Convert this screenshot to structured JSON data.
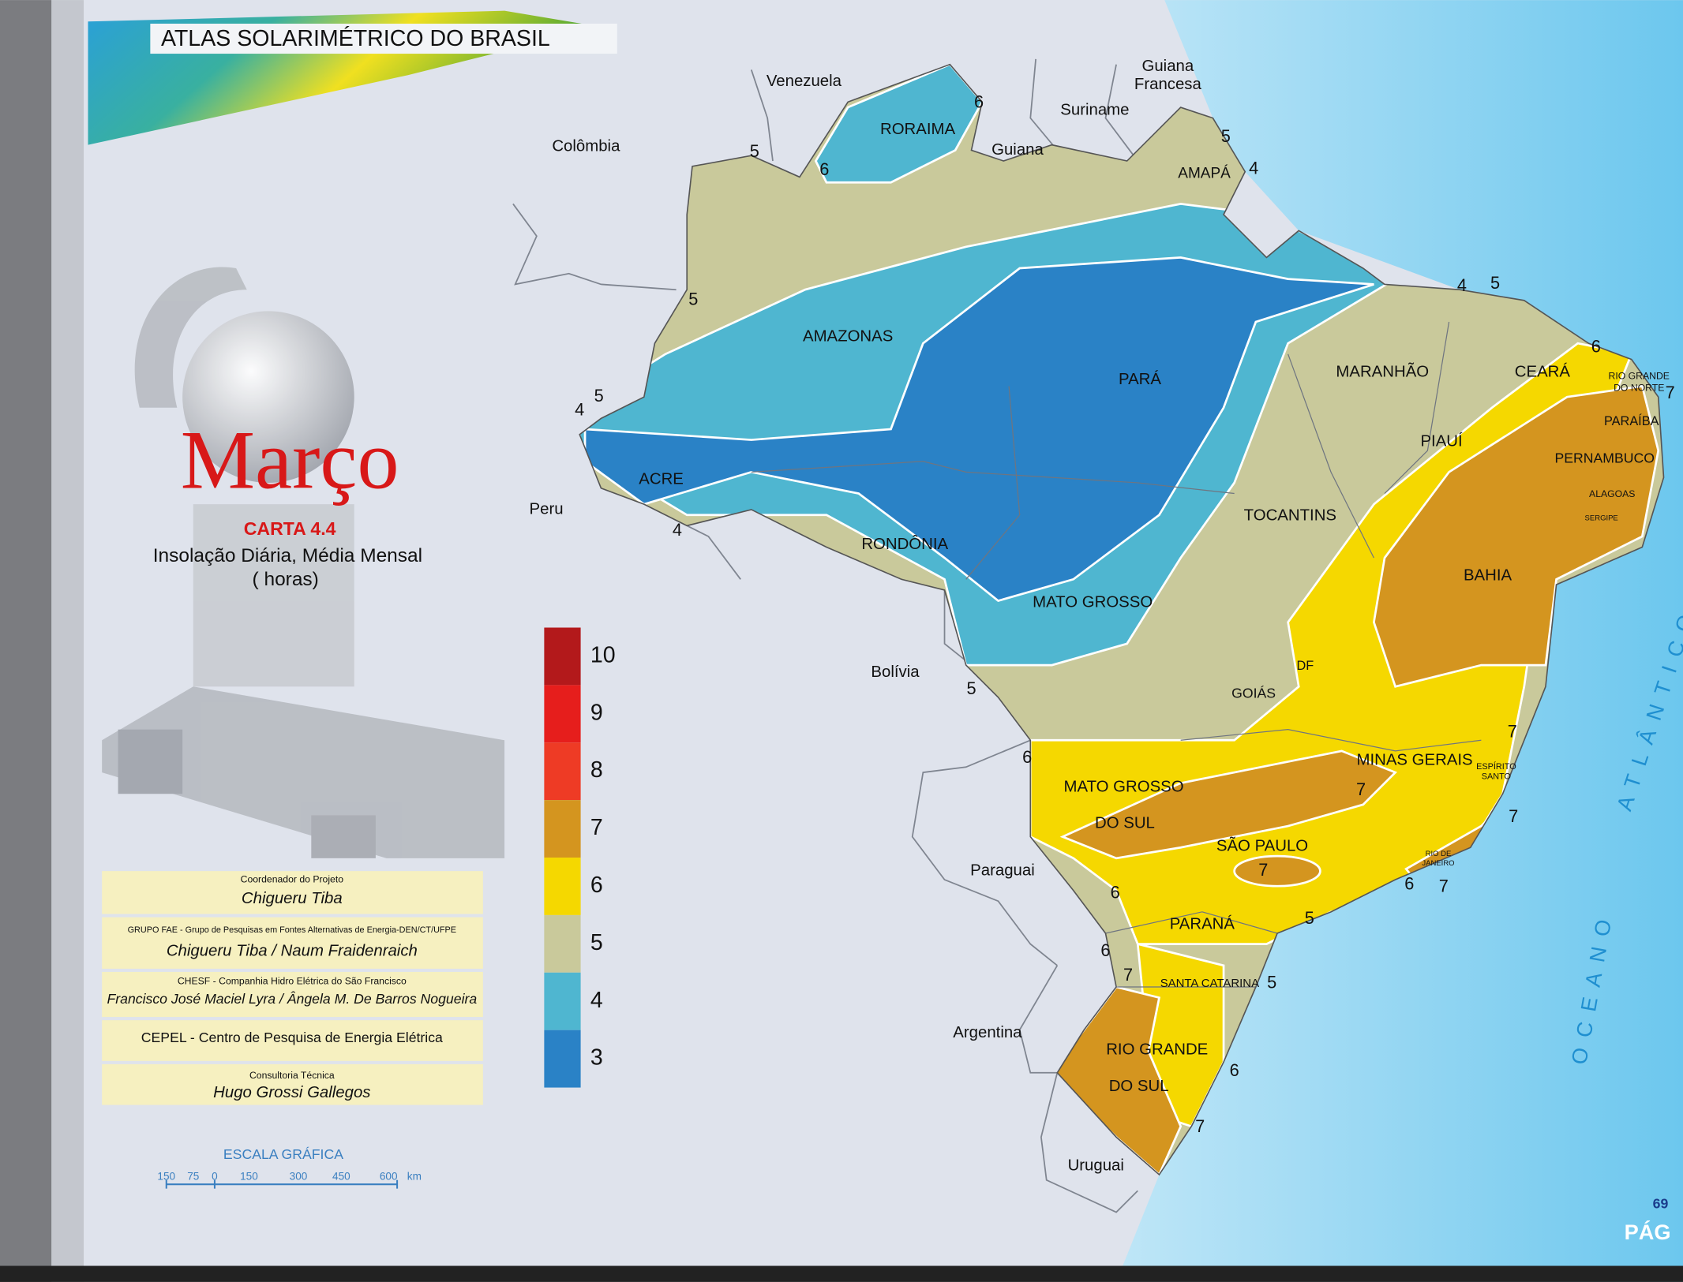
{
  "header": {
    "title": "ATLAS  SOLARIMÉTRICO DO  BRASIL"
  },
  "map_title": {
    "month": "Março",
    "code": "CARTA 4.4",
    "subtitle": "Insolação  Diária, Média Mensal",
    "unit": "( horas)"
  },
  "legend": [
    {
      "label": "10",
      "color": "#b3191b"
    },
    {
      "label": "9",
      "color": "#e61e1c"
    },
    {
      "label": "8",
      "color": "#ee3b25"
    },
    {
      "label": "7",
      "color": "#d4951f"
    },
    {
      "label": "6",
      "color": "#f5d800"
    },
    {
      "label": "5",
      "color": "#c9c99b"
    },
    {
      "label": "4",
      "color": "#4fb6d0"
    },
    {
      "label": "3",
      "color": "#2a82c6"
    }
  ],
  "credits": [
    {
      "heading": "Coordenador do Projeto",
      "names": "Chigueru  Tiba"
    },
    {
      "heading": "GRUPO  FAE - Grupo de Pesquisas em Fontes Alternativas de Energia-DEN/CT/UFPE",
      "names": "Chigueru Tiba /  Naum  Fraidenraich"
    },
    {
      "heading": "CHESF  -  Companhia Hidro Elétrica do São Francisco",
      "names": "Francisco José Maciel Lyra / Ângela M. De Barros Nogueira"
    },
    {
      "names": "CEPEL - Centro de Pesquisa de Energia Elétrica"
    },
    {
      "heading": "Consultoria Técnica",
      "names": "Hugo  Grossi Gallegos"
    }
  ],
  "scale": {
    "title": "ESCALA  GRÁFICA",
    "ticks": [
      "150",
      "75",
      "0",
      "150",
      "300",
      "450",
      "600"
    ],
    "unit": "km"
  },
  "countries": [
    "Venezuela",
    "Guiana",
    "Francesa",
    "Suriname",
    "Guiana",
    "Colômbia",
    "Peru",
    "Bolívia",
    "Paraguai",
    "Argentina",
    "Uruguai"
  ],
  "states": [
    "RORAIMA",
    "AMAPÁ",
    "AMAZONAS",
    "PARÁ",
    "MARANHÃO",
    "CEARÁ",
    "RIO GRANDE",
    "DO NORTE",
    "PARAÍBA",
    "PERNAMBUCO",
    "ALAGOAS",
    "SERGIPE",
    "PIAUÍ",
    "ACRE",
    "RONDÔNIA",
    "TOCANTINS",
    "BAHIA",
    "MATO  GROSSO",
    "DF",
    "GOIÁS",
    "MINAS  GERAIS",
    "ESPÍRITO",
    "SANTO",
    "MATO  GROSSO",
    "DO  SUL",
    "SÃO  PAULO",
    "RIO DE",
    "JANEIRO",
    "PARANÁ",
    "SANTA CATARINA",
    "RIO  GRANDE",
    "DO  SUL"
  ],
  "isolines": [
    "6",
    "5",
    "6",
    "5",
    "4",
    "5",
    "5",
    "4",
    "4",
    "4",
    "5",
    "6",
    "7",
    "5",
    "6",
    "7",
    "7",
    "7",
    "7",
    "6",
    "7",
    "6",
    "5",
    "6",
    "7",
    "5",
    "6",
    "7"
  ],
  "ocean": [
    "OCEANO",
    "ATLÂNTICO"
  ],
  "page": {
    "number": "69",
    "label": "PÁG"
  }
}
